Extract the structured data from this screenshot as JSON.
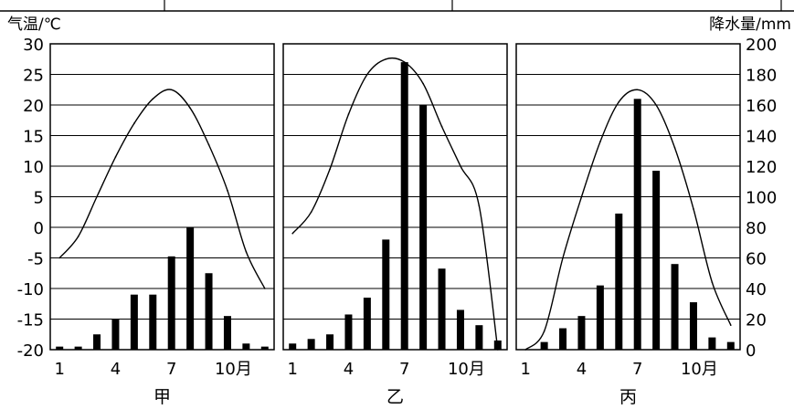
{
  "chart_data": [
    {
      "type": "bar+line",
      "panel_label": "甲",
      "x": [
        1,
        2,
        3,
        4,
        5,
        6,
        7,
        8,
        9,
        10,
        11,
        12
      ],
      "temperature": [
        -5,
        -1.5,
        5,
        11.5,
        17,
        21,
        22.5,
        19.5,
        13.5,
        6,
        -4,
        -10
      ],
      "precipitation": [
        2,
        2,
        10,
        20,
        36,
        36,
        61,
        80,
        50,
        22,
        4,
        2
      ]
    },
    {
      "type": "bar+line",
      "panel_label": "乙",
      "x": [
        1,
        2,
        3,
        4,
        5,
        6,
        7,
        8,
        9,
        10,
        11,
        12
      ],
      "temperature": [
        -1,
        2.5,
        9.5,
        18.5,
        25,
        27.5,
        27,
        23.5,
        16.5,
        10,
        3.5,
        -20
      ],
      "precipitation": [
        4,
        7,
        10,
        23,
        34,
        72,
        188,
        160,
        53,
        26,
        16,
        6
      ]
    },
    {
      "type": "bar+line",
      "panel_label": "丙",
      "x": [
        1,
        2,
        3,
        4,
        5,
        6,
        7,
        8,
        9,
        10,
        11,
        12
      ],
      "temperature": [
        -20,
        -17,
        -5,
        5,
        14,
        20.5,
        22.5,
        20,
        13,
        3,
        -9,
        -16
      ],
      "precipitation": [
        0,
        5,
        14,
        22,
        42,
        89,
        164,
        117,
        56,
        31,
        8,
        5
      ]
    }
  ],
  "axes": {
    "left": {
      "label": "气温/℃",
      "min": -20,
      "max": 30,
      "ticks": [
        "30",
        "25",
        "20",
        "15",
        "10",
        "5",
        "0",
        "-5",
        "-10",
        "-15",
        "-20"
      ]
    },
    "right": {
      "label": "降水量/mm",
      "min": 0,
      "max": 200,
      "ticks": [
        "200",
        "180",
        "160",
        "140",
        "120",
        "100",
        "80",
        "60",
        "40",
        "20",
        "0"
      ]
    },
    "x_ticks": [
      {
        "month": 1,
        "label": "1"
      },
      {
        "month": 4,
        "label": "4"
      },
      {
        "month": 7,
        "label": "7"
      },
      {
        "month": 10,
        "label": "10月"
      }
    ]
  },
  "colors": {
    "ink": "#000000",
    "background": "#ffffff"
  }
}
